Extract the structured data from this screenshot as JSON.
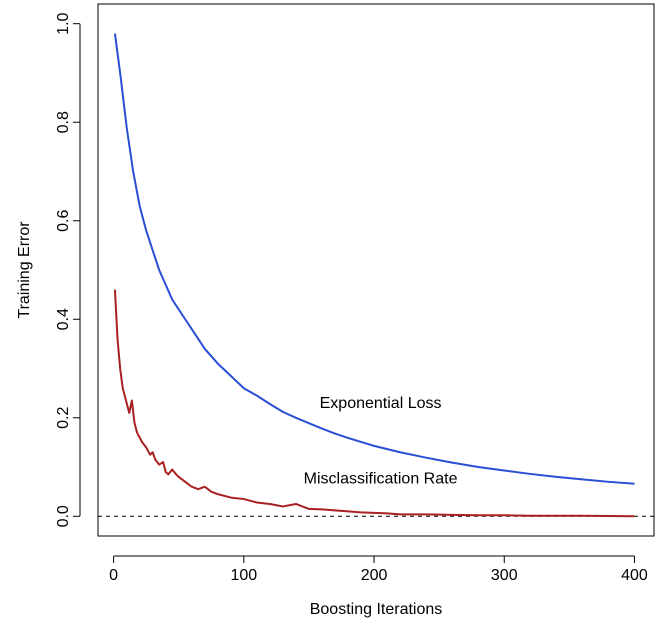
{
  "chart_data": {
    "type": "line",
    "title": "",
    "xlabel": "Boosting Iterations",
    "ylabel": "Training Error",
    "xlim": [
      -12,
      415
    ],
    "ylim": [
      -0.04,
      1.04
    ],
    "x_ticks": [
      0,
      100,
      200,
      300,
      400
    ],
    "x_tick_labels": [
      "0",
      "100",
      "200",
      "300",
      "400"
    ],
    "y_ticks": [
      0.0,
      0.2,
      0.4,
      0.6,
      0.8,
      1.0
    ],
    "y_tick_labels": [
      "0.0",
      "0.2",
      "0.4",
      "0.6",
      "0.8",
      "1.0"
    ],
    "grid": false,
    "reference_line": {
      "y": 0.0,
      "style": "dashed",
      "color": "#000000"
    },
    "series": [
      {
        "name": "Exponential Loss",
        "color": "#2a4fd6",
        "x": [
          1,
          5,
          10,
          15,
          20,
          25,
          30,
          35,
          40,
          45,
          50,
          55,
          60,
          65,
          70,
          75,
          80,
          90,
          100,
          110,
          120,
          130,
          140,
          150,
          160,
          170,
          180,
          190,
          200,
          220,
          240,
          260,
          280,
          300,
          320,
          340,
          360,
          380,
          400
        ],
        "values": [
          0.98,
          0.9,
          0.79,
          0.7,
          0.63,
          0.58,
          0.54,
          0.5,
          0.47,
          0.44,
          0.42,
          0.4,
          0.38,
          0.36,
          0.34,
          0.325,
          0.31,
          0.285,
          0.26,
          0.245,
          0.228,
          0.212,
          0.2,
          0.189,
          0.178,
          0.168,
          0.159,
          0.151,
          0.143,
          0.13,
          0.119,
          0.109,
          0.1,
          0.093,
          0.086,
          0.08,
          0.075,
          0.07,
          0.066
        ]
      },
      {
        "name": "Misclassification Rate",
        "color": "#a82020",
        "x": [
          1,
          3,
          5,
          7,
          10,
          12,
          14,
          16,
          18,
          20,
          22,
          25,
          28,
          30,
          32,
          35,
          38,
          40,
          42,
          45,
          48,
          50,
          55,
          60,
          65,
          70,
          75,
          80,
          90,
          100,
          110,
          120,
          130,
          140,
          150,
          160,
          170,
          180,
          190,
          200,
          210,
          220,
          240,
          260,
          280,
          300,
          320,
          340,
          360,
          380,
          400
        ],
        "values": [
          0.46,
          0.36,
          0.3,
          0.26,
          0.23,
          0.21,
          0.235,
          0.19,
          0.17,
          0.16,
          0.15,
          0.14,
          0.125,
          0.13,
          0.115,
          0.105,
          0.11,
          0.09,
          0.085,
          0.095,
          0.085,
          0.08,
          0.07,
          0.06,
          0.055,
          0.06,
          0.05,
          0.045,
          0.038,
          0.035,
          0.028,
          0.025,
          0.02,
          0.025,
          0.015,
          0.014,
          0.012,
          0.01,
          0.008,
          0.007,
          0.006,
          0.004,
          0.004,
          0.003,
          0.002,
          0.002,
          0.001,
          0.001,
          0.001,
          0.0005,
          0.0
        ]
      }
    ],
    "annotations": [
      {
        "text": "Exponential Loss",
        "x": 205,
        "y": 0.22
      },
      {
        "text": "Misclassification Rate",
        "x": 205,
        "y": 0.067
      }
    ]
  }
}
